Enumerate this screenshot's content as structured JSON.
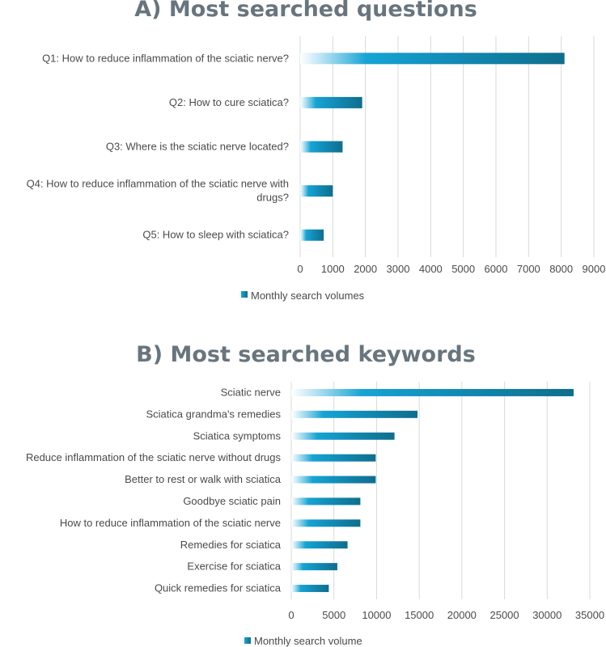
{
  "colors": {
    "bar_dark": "#0f6e8c",
    "bar_mid": "#16a4d4",
    "grid": "#d9d9d9",
    "text": "#4a4a4a",
    "title": "#68757e"
  },
  "chart_data": [
    {
      "type": "bar",
      "orientation": "horizontal",
      "title": "A) Most searched questions",
      "categories": [
        "Q1: How to reduce inflammation of the sciatic nerve?",
        "Q2: How to cure sciatica?",
        "Q3: Where is the sciatic nerve located?",
        "Q4: How to reduce inflammation of the sciatic nerve with drugs?",
        "Q5: How to sleep with sciatica?"
      ],
      "category_lines": [
        [
          "Q1: How to reduce inflammation of the sciatic nerve?"
        ],
        [
          "Q2: How to cure sciatica?"
        ],
        [
          "Q3: Where is the sciatic nerve located?"
        ],
        [
          "Q4: How to reduce inflammation of the sciatic nerve with",
          "drugs?"
        ],
        [
          "Q5: How to sleep with sciatica?"
        ]
      ],
      "series": [
        {
          "name": "Monthly search volumes",
          "values": [
            8100,
            1900,
            1300,
            1000,
            720
          ]
        }
      ],
      "xlim": [
        0,
        9000
      ],
      "xticks": [
        0,
        1000,
        2000,
        3000,
        4000,
        5000,
        6000,
        7000,
        8000,
        9000
      ],
      "grid": true,
      "legend": "bottom-center"
    },
    {
      "type": "bar",
      "orientation": "horizontal",
      "title": "B) Most searched keywords",
      "categories": [
        "Sciatic nerve",
        "Sciatica grandma's remedies",
        "Sciatica symptoms",
        "Reduce inflammation of the sciatic nerve without drugs",
        "Better to rest or walk with sciatica",
        "Goodbye sciatic pain",
        "How to reduce inflammation of the sciatic nerve",
        "Remedies for sciatica",
        "Exercise for sciatica",
        "Quick remedies for sciatica"
      ],
      "series": [
        {
          "name": "Monthly search volume",
          "values": [
            33100,
            14800,
            12100,
            9900,
            9900,
            8100,
            8100,
            6600,
            5400,
            4400
          ]
        }
      ],
      "xlim": [
        0,
        35000
      ],
      "xticks": [
        0,
        5000,
        10000,
        15000,
        20000,
        25000,
        30000,
        35000
      ],
      "grid": true,
      "legend": "bottom-center"
    }
  ]
}
